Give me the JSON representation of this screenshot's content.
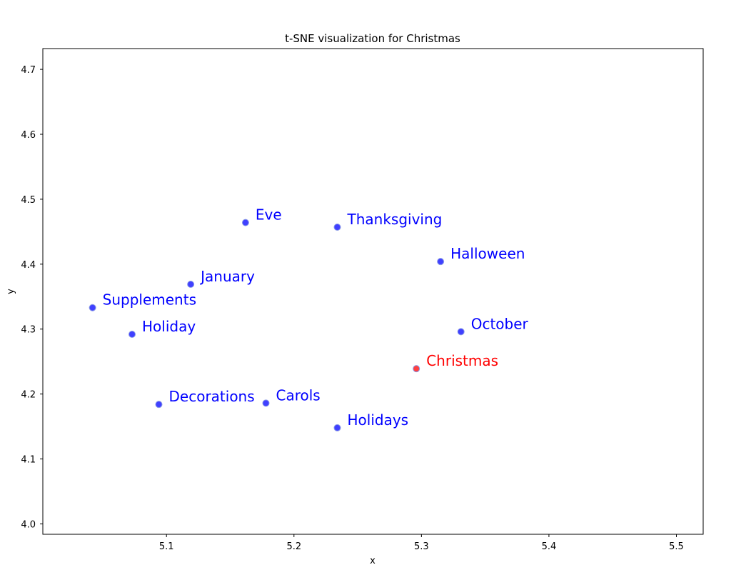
{
  "chart_data": {
    "type": "scatter",
    "title": "t-SNE visualization for Christmas",
    "xlabel": "x",
    "ylabel": "y",
    "xlim": [
      5.003,
      5.521
    ],
    "ylim": [
      3.984,
      4.732
    ],
    "xticks": [
      "5.1",
      "5.2",
      "5.3",
      "5.4",
      "5.5"
    ],
    "yticks": [
      "4.0",
      "4.1",
      "4.2",
      "4.3",
      "4.4",
      "4.5",
      "4.6",
      "4.7"
    ],
    "grid": false,
    "points": [
      {
        "label": "Eve",
        "x": 5.162,
        "y": 4.464,
        "color": "#0000ff"
      },
      {
        "label": "Thanksgiving",
        "x": 5.234,
        "y": 4.457,
        "color": "#0000ff"
      },
      {
        "label": "Halloween",
        "x": 5.315,
        "y": 4.404,
        "color": "#0000ff"
      },
      {
        "label": "January",
        "x": 5.119,
        "y": 4.369,
        "color": "#0000ff"
      },
      {
        "label": "Supplements",
        "x": 5.042,
        "y": 4.333,
        "color": "#0000ff"
      },
      {
        "label": "Holiday",
        "x": 5.073,
        "y": 4.292,
        "color": "#0000ff"
      },
      {
        "label": "October",
        "x": 5.331,
        "y": 4.296,
        "color": "#0000ff"
      },
      {
        "label": "Christmas",
        "x": 5.296,
        "y": 4.239,
        "color": "#ff0000"
      },
      {
        "label": "Decorations",
        "x": 5.094,
        "y": 4.184,
        "color": "#0000ff"
      },
      {
        "label": "Carols",
        "x": 5.178,
        "y": 4.186,
        "color": "#0000ff"
      },
      {
        "label": "Holidays",
        "x": 5.234,
        "y": 4.148,
        "color": "#0000ff"
      }
    ]
  }
}
